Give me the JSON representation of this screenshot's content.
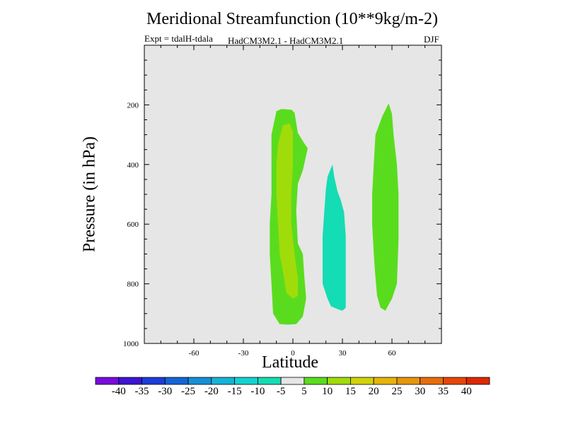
{
  "title": "Meridional Streamfunction (10**9kg/m-2)",
  "subtitle_left": "Expt = tdalH-tdala",
  "subtitle_center": "HadCM3M2.1 - HadCM3M2.1",
  "subtitle_right": "DJF",
  "chart_data": {
    "type": "filled-contour",
    "title": "Meridional Streamfunction (10**9kg/m-2)",
    "xlabel": "Latitude",
    "ylabel": "Pressure (in hPa)",
    "xlim": [
      -90,
      90
    ],
    "ylim": [
      1000,
      0
    ],
    "xticks": [
      -60,
      -30,
      0,
      30,
      60
    ],
    "xtick_labels": [
      "-60",
      "-30",
      "0",
      "30",
      "60"
    ],
    "yticks": [
      200,
      400,
      600,
      800,
      1000
    ],
    "ytick_labels": [
      "200",
      "400",
      "600",
      "800",
      "1000"
    ],
    "background_color": "#e6e6e6",
    "colorbar": {
      "labels": [
        "-40",
        "-35",
        "-30",
        "-25",
        "-20",
        "-15",
        "-10",
        "-5",
        "5",
        "10",
        "15",
        "20",
        "25",
        "30",
        "35",
        "40"
      ],
      "colors": [
        "#7b0adc",
        "#3c14d2",
        "#1e3cd7",
        "#1464d7",
        "#1490d7",
        "#14b4d7",
        "#14d2d2",
        "#14dcb4",
        "#e6e6e6",
        "#5adc1e",
        "#a0dc0a",
        "#d2d20a",
        "#e6b40a",
        "#e6960a",
        "#e66e0a",
        "#e6460a",
        "#dc2800"
      ]
    },
    "regions": [
      {
        "name": "southern-cell-outer",
        "level": "5 to 10",
        "color": "#5adc1e",
        "points": [
          [
            -10,
            221
          ],
          [
            -7,
            214
          ],
          [
            -1,
            216
          ],
          [
            1,
            226
          ],
          [
            3,
            294
          ],
          [
            7,
            330
          ],
          [
            9,
            345
          ],
          [
            6,
            420
          ],
          [
            3,
            465
          ],
          [
            2,
            555
          ],
          [
            3,
            665
          ],
          [
            6,
            700
          ],
          [
            7,
            780
          ],
          [
            8,
            850
          ],
          [
            6,
            910
          ],
          [
            2,
            935
          ],
          [
            -3,
            937
          ],
          [
            -8,
            935
          ],
          [
            -12,
            900
          ],
          [
            -13,
            800
          ],
          [
            -14,
            700
          ],
          [
            -14,
            600
          ],
          [
            -13,
            500
          ],
          [
            -13,
            400
          ],
          [
            -13,
            300
          ]
        ]
      },
      {
        "name": "southern-cell-inner",
        "level": "10 to 15",
        "color": "#a0dc0a",
        "points": [
          [
            -6,
            268
          ],
          [
            -2,
            262
          ],
          [
            0,
            290
          ],
          [
            0,
            400
          ],
          [
            -1,
            500
          ],
          [
            -1,
            600
          ],
          [
            1,
            700
          ],
          [
            3,
            780
          ],
          [
            3,
            840
          ],
          [
            0,
            850
          ],
          [
            -4,
            830
          ],
          [
            -6,
            760
          ],
          [
            -8,
            700
          ],
          [
            -9,
            600
          ],
          [
            -10,
            500
          ],
          [
            -10,
            400
          ],
          [
            -9,
            330
          ]
        ]
      },
      {
        "name": "mid-latitude-cell",
        "level": "-10 to -5",
        "color": "#14dcb4",
        "points": [
          [
            24,
            400
          ],
          [
            25,
            440
          ],
          [
            27,
            490
          ],
          [
            29,
            520
          ],
          [
            31,
            560
          ],
          [
            32,
            640
          ],
          [
            32,
            720
          ],
          [
            32,
            800
          ],
          [
            32,
            880
          ],
          [
            30,
            890
          ],
          [
            28,
            887
          ],
          [
            25,
            880
          ],
          [
            23,
            875
          ],
          [
            21,
            850
          ],
          [
            18,
            800
          ],
          [
            18,
            720
          ],
          [
            18,
            640
          ],
          [
            19,
            560
          ],
          [
            20,
            480
          ],
          [
            21,
            440
          ]
        ]
      },
      {
        "name": "northern-cell",
        "level": "5 to 10",
        "color": "#5adc1e",
        "points": [
          [
            58,
            195
          ],
          [
            60,
            230
          ],
          [
            61,
            300
          ],
          [
            63,
            400
          ],
          [
            64,
            500
          ],
          [
            64,
            650
          ],
          [
            63,
            800
          ],
          [
            60,
            850
          ],
          [
            56,
            890
          ],
          [
            53,
            880
          ],
          [
            51,
            840
          ],
          [
            50,
            780
          ],
          [
            49,
            700
          ],
          [
            48,
            600
          ],
          [
            48,
            500
          ],
          [
            49,
            400
          ],
          [
            50,
            300
          ],
          [
            54,
            240
          ]
        ]
      }
    ]
  }
}
